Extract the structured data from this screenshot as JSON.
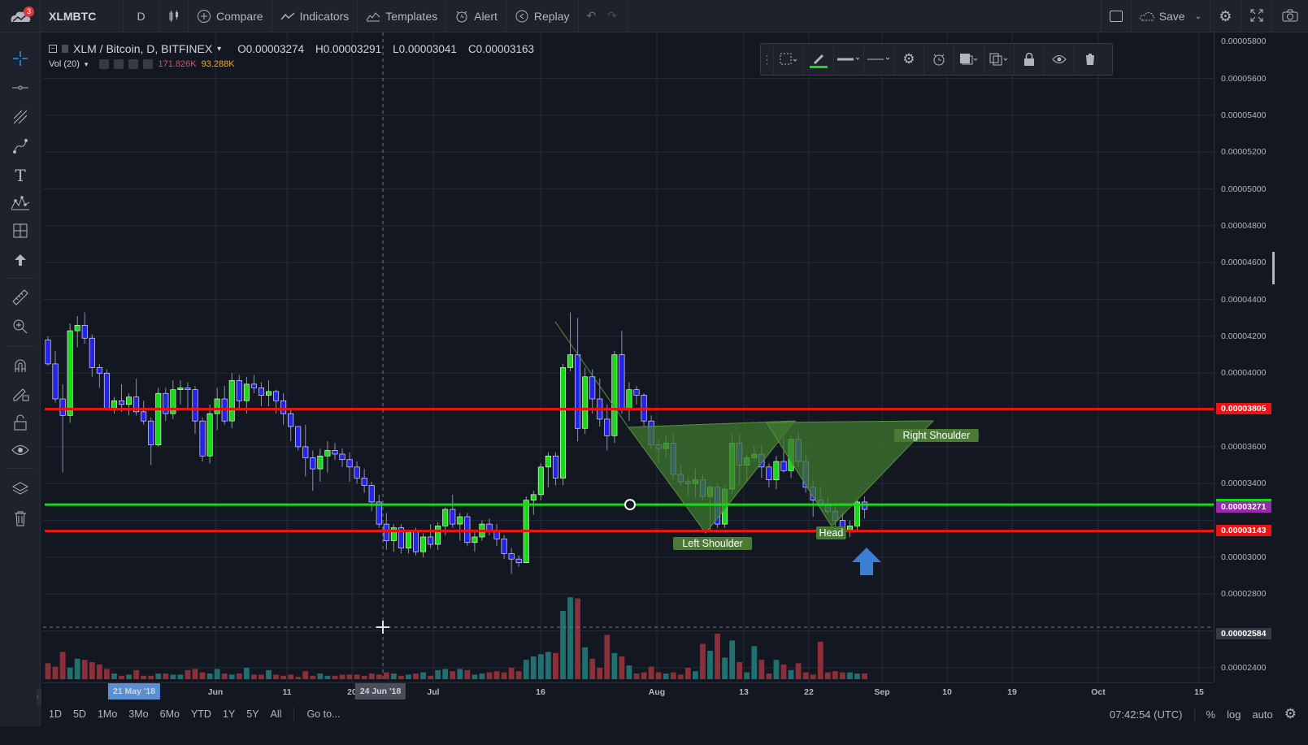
{
  "topbar": {
    "notifications": "3",
    "symbol": "XLMBTC",
    "interval": "D",
    "compare": "Compare",
    "indicators": "Indicators",
    "templates": "Templates",
    "alert": "Alert",
    "replay": "Replay",
    "save": "Save"
  },
  "legend": {
    "title": "XLM / Bitcoin, D, BITFINEX",
    "open": "O0.00003274",
    "high": "H0.00003291",
    "low": "L0.00003041",
    "close": "C0.00003163",
    "vol_label": "Vol (20)",
    "vol_value1": "171.826K",
    "vol_value2": "93.288K"
  },
  "price_axis": {
    "labels": [
      "0.00005800",
      "0.00005600",
      "0.00005400",
      "0.00005200",
      "0.00005000",
      "0.00004800",
      "0.00004600",
      "0.00004400",
      "0.00004200",
      "0.00004000",
      "0.00003600",
      "0.00003400",
      "0.00003000",
      "0.00002800",
      "0.00002400"
    ],
    "tags": [
      {
        "text": "0.00003805",
        "color": "#e91515"
      },
      {
        "text": "0.00003286",
        "color": "#1ad91a"
      },
      {
        "text": "0.00003271",
        "color": "#9c27b0"
      },
      {
        "text": "0.00003143",
        "color": "#e91515"
      },
      {
        "text": "0.00002584",
        "color": "#363a45"
      }
    ]
  },
  "time_axis": {
    "labels": [
      "Jun",
      "11",
      "20",
      "Jul",
      "16",
      "Aug",
      "13",
      "22",
      "Sep",
      "10",
      "19",
      "Oct",
      "15"
    ],
    "crosshair_tags": [
      "21 May '18",
      "24 Jun '18"
    ]
  },
  "annotations": {
    "left_shoulder": "Left Shoulder",
    "head": "Head",
    "right_shoulder": "Right Shoulder"
  },
  "bottombar": {
    "ranges": [
      "1D",
      "5D",
      "1Mo",
      "3Mo",
      "6Mo",
      "YTD",
      "1Y",
      "5Y",
      "All"
    ],
    "goto": "Go to...",
    "clock": "07:42:54 (UTC)",
    "percent": "%",
    "log": "log",
    "auto": "auto"
  },
  "colors": {
    "up": "#1ad91a",
    "down": "#2424e8",
    "resistance": "#e91515",
    "neckline": "#1ad91a",
    "pattern_fill": "#3f7a2e",
    "vol_up": "#20706f",
    "vol_down": "#8d2f39"
  },
  "chart_data": {
    "type": "candlestick",
    "series_name": "XLM / Bitcoin, D, BITFINEX",
    "ylim": [
      2.32e-05,
      5.85e-05
    ],
    "candles": [
      [
        4.18e-05,
        4.2e-05,
        4.04e-05,
        4.05e-05
      ],
      [
        4.05e-05,
        4.12e-05,
        3.84e-05,
        3.86e-05
      ],
      [
        3.86e-05,
        3.94e-05,
        3.46e-05,
        3.77e-05
      ],
      [
        3.77e-05,
        4.27e-05,
        3.73e-05,
        4.23e-05
      ],
      [
        4.23e-05,
        4.31e-05,
        4.14e-05,
        4.26e-05
      ],
      [
        4.26e-05,
        4.33e-05,
        4.16e-05,
        4.19e-05
      ],
      [
        4.19e-05,
        4.21e-05,
        3.98e-05,
        4.03e-05
      ],
      [
        4.03e-05,
        4.05e-05,
        3.92e-05,
        4e-05
      ],
      [
        4e-05,
        4.02e-05,
        3.8e-05,
        3.81e-05
      ],
      [
        3.81e-05,
        3.87e-05,
        3.78e-05,
        3.85e-05
      ],
      [
        3.85e-05,
        3.94e-05,
        3.79e-05,
        3.83e-05
      ],
      [
        3.83e-05,
        3.89e-05,
        3.77e-05,
        3.87e-05
      ],
      [
        3.87e-05,
        3.97e-05,
        3.77e-05,
        3.79e-05
      ],
      [
        3.79e-05,
        3.85e-05,
        3.72e-05,
        3.74e-05
      ],
      [
        3.74e-05,
        3.76e-05,
        3.5e-05,
        3.61e-05
      ],
      [
        3.61e-05,
        3.92e-05,
        3.6e-05,
        3.89e-05
      ],
      [
        3.89e-05,
        3.92e-05,
        3.74e-05,
        3.78e-05
      ],
      [
        3.78e-05,
        3.96e-05,
        3.75e-05,
        3.91e-05
      ],
      [
        3.91e-05,
        3.96e-05,
        3.83e-05,
        3.92e-05
      ],
      [
        3.92e-05,
        3.95e-05,
        3.81e-05,
        3.91e-05
      ],
      [
        3.91e-05,
        3.93e-05,
        3.67e-05,
        3.74e-05
      ],
      [
        3.74e-05,
        3.76e-05,
        3.52e-05,
        3.55e-05
      ],
      [
        3.55e-05,
        3.83e-05,
        3.51e-05,
        3.78e-05
      ],
      [
        3.78e-05,
        3.92e-05,
        3.69e-05,
        3.86e-05
      ],
      [
        3.86e-05,
        3.93e-05,
        3.72e-05,
        3.74e-05
      ],
      [
        3.74e-05,
        4e-05,
        3.7e-05,
        3.96e-05
      ],
      [
        3.96e-05,
        3.99e-05,
        3.8e-05,
        3.85e-05
      ],
      [
        3.85e-05,
        3.98e-05,
        3.78e-05,
        3.94e-05
      ],
      [
        3.94e-05,
        3.99e-05,
        3.89e-05,
        3.92e-05
      ],
      [
        3.92e-05,
        3.95e-05,
        3.82e-05,
        3.88e-05
      ],
      [
        3.88e-05,
        3.96e-05,
        3.82e-05,
        3.9e-05
      ],
      [
        3.9e-05,
        3.91e-05,
        3.78e-05,
        3.85e-05
      ],
      [
        3.85e-05,
        3.89e-05,
        3.72e-05,
        3.78e-05
      ],
      [
        3.78e-05,
        3.81e-05,
        3.63e-05,
        3.71e-05
      ],
      [
        3.71e-05,
        3.7e-05,
        3.58e-05,
        3.6e-05
      ],
      [
        3.6e-05,
        3.72e-05,
        3.44e-05,
        3.54e-05
      ],
      [
        3.54e-05,
        3.58e-05,
        3.36e-05,
        3.48e-05
      ],
      [
        3.48e-05,
        3.59e-05,
        3.41e-05,
        3.55e-05
      ],
      [
        3.55e-05,
        3.63e-05,
        3.46e-05,
        3.58e-05
      ],
      [
        3.58e-05,
        3.62e-05,
        3.53e-05,
        3.56e-05
      ],
      [
        3.56e-05,
        3.59e-05,
        3.49e-05,
        3.53e-05
      ],
      [
        3.53e-05,
        3.57e-05,
        3.41e-05,
        3.49e-05
      ],
      [
        3.49e-05,
        3.52e-05,
        3.4e-05,
        3.43e-05
      ],
      [
        3.43e-05,
        3.48e-05,
        3.35e-05,
        3.39e-05
      ],
      [
        3.39e-05,
        3.41e-05,
        3.25e-05,
        3.3e-05
      ],
      [
        3.3e-05,
        3.34e-05,
        3.16e-05,
        3.18e-05
      ],
      [
        3.18e-05,
        3.24e-05,
        3.04e-05,
        3.09e-05
      ],
      [
        3.09e-05,
        3.18e-05,
        3.03e-05,
        3.16e-05
      ],
      [
        3.16e-05,
        3.18e-05,
        3.02e-05,
        3.05e-05
      ],
      [
        3.05e-05,
        3.15e-05,
        3.02e-05,
        3.14e-05
      ],
      [
        3.14e-05,
        3.16e-05,
        3.01e-05,
        3.03e-05
      ],
      [
        3.03e-05,
        3.13e-05,
        3e-05,
        3.11e-05
      ],
      [
        3.11e-05,
        3.18e-05,
        3.05e-05,
        3.07e-05
      ],
      [
        3.07e-05,
        3.19e-05,
        3.04e-05,
        3.17e-05
      ],
      [
        3.17e-05,
        3.27e-05,
        3.12e-05,
        3.26e-05
      ],
      [
        3.26e-05,
        3.34e-05,
        3.16e-05,
        3.18e-05
      ],
      [
        3.18e-05,
        3.24e-05,
        3.09e-05,
        3.22e-05
      ],
      [
        3.22e-05,
        3.24e-05,
        3.06e-05,
        3.08e-05
      ],
      [
        3.08e-05,
        3.15e-05,
        3.03e-05,
        3.11e-05
      ],
      [
        3.11e-05,
        3.2e-05,
        3.09e-05,
        3.18e-05
      ],
      [
        3.18e-05,
        3.21e-05,
        3.12e-05,
        3.14e-05
      ],
      [
        3.14e-05,
        3.18e-05,
        3.06e-05,
        3.1e-05
      ],
      [
        3.1e-05,
        3.12e-05,
        2.99e-05,
        3.02e-05
      ],
      [
        3.02e-05,
        3.05e-05,
        2.91e-05,
        2.99e-05
      ],
      [
        2.99e-05,
        3.01e-05,
        2.95e-05,
        2.97e-05
      ],
      [
        2.97e-05,
        3.33e-05,
        2.97e-05,
        3.31e-05
      ],
      [
        3.31e-05,
        3.36e-05,
        3.23e-05,
        3.34e-05
      ],
      [
        3.34e-05,
        3.51e-05,
        3.31e-05,
        3.49e-05
      ],
      [
        3.49e-05,
        3.57e-05,
        3.38e-05,
        3.55e-05
      ],
      [
        3.55e-05,
        3.57e-05,
        3.39e-05,
        3.43e-05
      ],
      [
        3.43e-05,
        4.05e-05,
        3.39e-05,
        4.03e-05
      ],
      [
        4.03e-05,
        4.33e-05,
        4.01e-05,
        4.1e-05
      ],
      [
        4.1e-05,
        4.3e-05,
        3.63e-05,
        3.7e-05
      ],
      [
        3.7e-05,
        4.03e-05,
        3.67e-05,
        3.98e-05
      ],
      [
        3.98e-05,
        4.02e-05,
        3.78e-05,
        3.86e-05
      ],
      [
        3.86e-05,
        3.97e-05,
        3.71e-05,
        3.75e-05
      ],
      [
        3.75e-05,
        3.83e-05,
        3.58e-05,
        3.66e-05
      ],
      [
        3.66e-05,
        4.12e-05,
        3.62e-05,
        4.1e-05
      ],
      [
        4.1e-05,
        4.23e-05,
        3.78e-05,
        3.81e-05
      ],
      [
        3.81e-05,
        3.95e-05,
        3.74e-05,
        3.91e-05
      ],
      [
        3.91e-05,
        3.93e-05,
        3.83e-05,
        3.88e-05
      ],
      [
        3.88e-05,
        3.89e-05,
        3.71e-05,
        3.74e-05
      ],
      [
        3.74e-05,
        3.77e-05,
        3.59e-05,
        3.61e-05
      ],
      [
        3.61e-05,
        3.64e-05,
        3.51e-05,
        3.59e-05
      ],
      [
        3.59e-05,
        3.66e-05,
        3.54e-05,
        3.62e-05
      ],
      [
        3.62e-05,
        3.67e-05,
        3.42e-05,
        3.45e-05
      ],
      [
        3.45e-05,
        3.51e-05,
        3.39e-05,
        3.41e-05
      ],
      [
        3.41e-05,
        3.44e-05,
        3.33e-05,
        3.4e-05
      ],
      [
        3.4e-05,
        3.48e-05,
        3.32e-05,
        3.42e-05
      ],
      [
        3.42e-05,
        3.45e-05,
        3.31e-05,
        3.33e-05
      ],
      [
        3.33e-05,
        3.39e-05,
        3.14e-05,
        3.38e-05
      ],
      [
        3.38e-05,
        3.4e-05,
        3.16e-05,
        3.18e-05
      ],
      [
        3.18e-05,
        3.39e-05,
        3.16e-05,
        3.37e-05
      ],
      [
        3.37e-05,
        3.67e-05,
        3.34e-05,
        3.62e-05
      ],
      [
        3.62e-05,
        3.67e-05,
        3.39e-05,
        3.5e-05
      ],
      [
        3.5e-05,
        3.56e-05,
        3.41e-05,
        3.54e-05
      ],
      [
        3.54e-05,
        3.6e-05,
        3.52e-05,
        3.56e-05
      ],
      [
        3.56e-05,
        3.61e-05,
        3.43e-05,
        3.49e-05
      ],
      [
        3.49e-05,
        3.51e-05,
        3.38e-05,
        3.42e-05
      ],
      [
        3.42e-05,
        3.55e-05,
        3.37e-05,
        3.52e-05
      ],
      [
        3.52e-05,
        3.65e-05,
        3.46e-05,
        3.47e-05
      ],
      [
        3.47e-05,
        3.66e-05,
        3.43e-05,
        3.64e-05
      ],
      [
        3.64e-05,
        3.68e-05,
        3.49e-05,
        3.52e-05
      ],
      [
        3.52e-05,
        3.56e-05,
        3.35e-05,
        3.38e-05
      ],
      [
        3.38e-05,
        3.42e-05,
        3.22e-05,
        3.31e-05
      ],
      [
        3.31e-05,
        3.38e-05,
        3.27e-05,
        3.28e-05
      ],
      [
        3.28e-05,
        3.33e-05,
        3.23e-05,
        3.25e-05
      ],
      [
        3.25e-05,
        3.28e-05,
        3.17e-05,
        3.2e-05
      ],
      [
        3.2e-05,
        3.24e-05,
        3.13e-05,
        3.14e-05
      ],
      [
        3.14e-05,
        3.2e-05,
        3.11e-05,
        3.17e-05
      ],
      [
        3.17e-05,
        3.31e-05,
        3.14e-05,
        3.3e-05
      ],
      [
        3.3e-05,
        3.33e-05,
        3.21e-05,
        3.26e-05
      ]
    ],
    "horizontal_lines": [
      3.805e-05,
      3.286e-05,
      3.143e-05
    ],
    "volume_ylim": [
      0,
      75
    ]
  }
}
